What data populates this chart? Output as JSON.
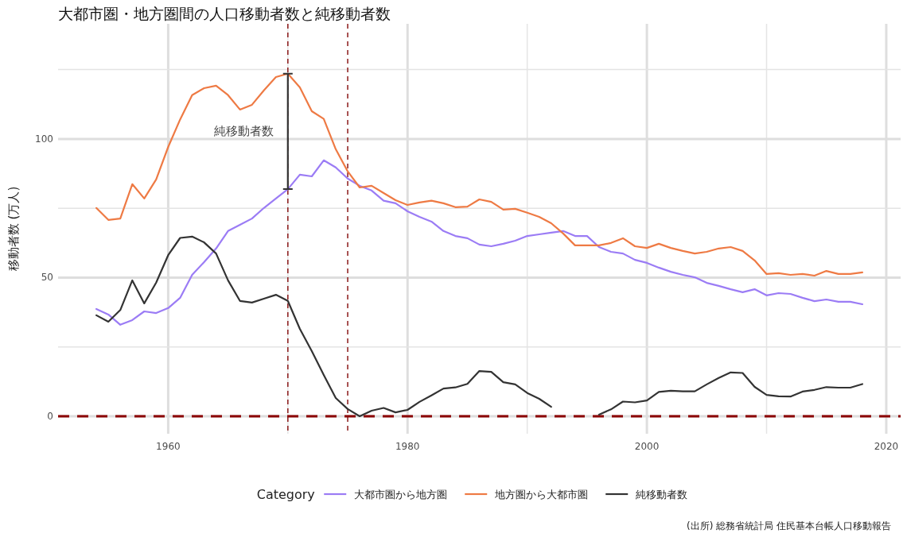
{
  "chart_data": {
    "type": "line",
    "title": "大都市圏・地方圏間の人口移動者数と純移動者数",
    "ylabel": "移動者数 (万人)",
    "legend_title": "Category",
    "x": [
      1954,
      1955,
      1956,
      1957,
      1958,
      1959,
      1960,
      1961,
      1962,
      1963,
      1964,
      1965,
      1966,
      1967,
      1968,
      1969,
      1970,
      1971,
      1972,
      1973,
      1974,
      1975,
      1976,
      1977,
      1978,
      1979,
      1980,
      1981,
      1982,
      1983,
      1984,
      1985,
      1986,
      1987,
      1988,
      1989,
      1990,
      1991,
      1992,
      1993,
      1994,
      1995,
      1996,
      1997,
      1998,
      1999,
      2000,
      2001,
      2002,
      2003,
      2004,
      2005,
      2006,
      2007,
      2008,
      2009,
      2010,
      2011,
      2012,
      2013,
      2014,
      2015,
      2016,
      2017,
      2018
    ],
    "series": [
      {
        "name": "大都市圏から地方圏",
        "color": "#9b7cf5",
        "values": [
          38.7,
          36.7,
          33,
          34.7,
          37.8,
          37.2,
          39,
          42.7,
          51,
          55.6,
          60.5,
          66.8,
          69,
          71.3,
          75.1,
          78.5,
          81.9,
          87.1,
          86.5,
          92.3,
          89.7,
          85.7,
          83.1,
          81.4,
          77.7,
          76.8,
          73.9,
          71.9,
          70.2,
          66.8,
          65,
          64.2,
          61.9,
          61.3,
          62.2,
          63.3,
          65,
          65.6,
          66.2,
          66.8,
          65,
          65,
          61,
          59.3,
          58.7,
          56.4,
          55.3,
          53.6,
          52.1,
          51,
          50.1,
          48.1,
          47,
          45.8,
          44.7,
          45.8,
          43.6,
          44.4,
          44.1,
          42.7,
          41.5,
          42.1,
          41.3,
          41.3,
          40.4
        ]
      },
      {
        "name": "地方圏から大都市圏",
        "color": "#ee7a44",
        "values": [
          75.1,
          70.8,
          71.3,
          83.7,
          78.5,
          85.4,
          97.1,
          107,
          115.8,
          118.3,
          119.2,
          115.8,
          110.6,
          112.3,
          117.5,
          122.3,
          123.5,
          118.6,
          110,
          107.2,
          96.3,
          88.3,
          82.5,
          83.1,
          80.5,
          77.9,
          76.2,
          77.1,
          77.7,
          76.8,
          75.4,
          75.6,
          78.2,
          77.3,
          74.5,
          74.8,
          73.4,
          71.9,
          69.6,
          65.9,
          61.6,
          61.6,
          61.6,
          62.5,
          64.2,
          61.3,
          60.7,
          62.2,
          60.7,
          59.6,
          58.7,
          59.3,
          60.5,
          61,
          59.6,
          56.2,
          51.3,
          51.6,
          51,
          51.3,
          50.7,
          52.4,
          51.3,
          51.3,
          51.9
        ]
      },
      {
        "name": "純移動者数",
        "color": "#333333",
        "values": [
          36.4,
          34.1,
          38.3,
          49,
          40.7,
          48.2,
          58.1,
          64.3,
          64.8,
          62.7,
          58.7,
          49,
          41.6,
          41,
          42.4,
          43.8,
          41.6,
          31.5,
          23.5,
          14.9,
          6.6,
          2.6,
          0,
          2,
          3,
          1.4,
          2.3,
          5.2,
          7.5,
          10,
          10.4,
          11.7,
          16.3,
          16,
          12.3,
          11.5,
          8.4,
          6.3,
          3.4,
          null,
          null,
          null,
          0.6,
          2.5,
          5.3,
          5,
          5.7,
          8.8,
          9.2,
          9,
          9,
          11.5,
          13.8,
          15.8,
          15.6,
          10.6,
          7.7,
          7.2,
          7.1,
          8.9,
          9.5,
          10.5,
          10.3,
          10.3,
          11.6
        ]
      },
      {
        "type": "line",
        "color": "#333333",
        "x": [
          1970,
          1970
        ],
        "values": [
          81.9,
          123.5
        ]
      }
    ],
    "xlim": [
      1950.8,
      2021.2
    ],
    "ylim": [
      -6.3,
      141.5
    ],
    "xticks": [
      1960,
      1980,
      2000,
      2020
    ],
    "yticks": [
      0,
      50,
      100
    ],
    "grid": true,
    "legend": "bottom",
    "ref_lines": [
      {
        "axis": "x",
        "value": 1970,
        "color": "#8b1a1a",
        "line_style": "dashed"
      },
      {
        "axis": "x",
        "value": 1975,
        "color": "#8b1a1a",
        "line_style": "dashed"
      },
      {
        "axis": "y",
        "value": 0,
        "color": "#8b0000",
        "line_style": "dashed"
      }
    ],
    "annotations": [
      "純移動者数",
      "(出所) 総務省統計局 住民基本台帳人口移動報告"
    ]
  }
}
